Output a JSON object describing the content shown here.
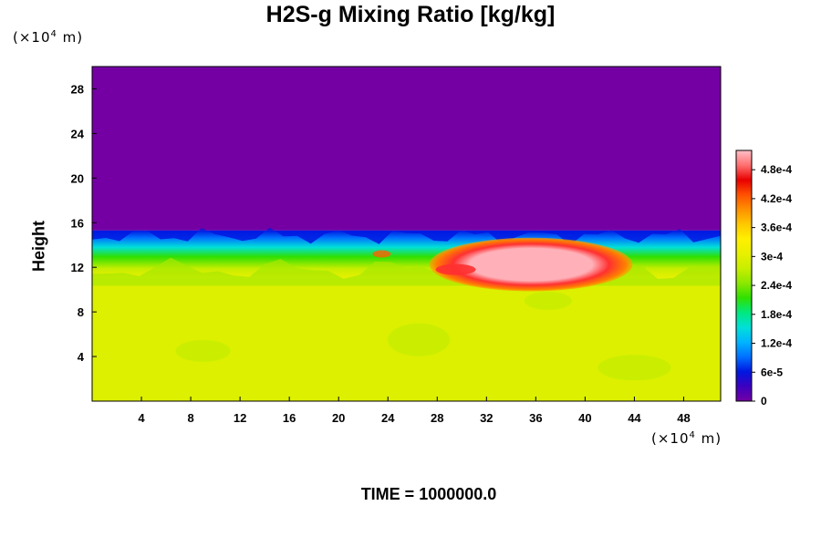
{
  "chart_data": {
    "type": "heatmap",
    "title": "H2S-g Mixing Ratio [kg/kg]",
    "ylabel": "Height",
    "xlabel": "",
    "x_unit_prefix": "(×10",
    "x_unit_exp": "4",
    "x_unit_suffix": " m)",
    "y_unit_prefix": "(×10",
    "y_unit_exp": "4",
    "y_unit_suffix": " m)",
    "time_label": "TIME = 1000000.0",
    "xlim": [
      0,
      51
    ],
    "ylim": [
      0,
      30
    ],
    "x_ticks": [
      4,
      8,
      12,
      16,
      20,
      24,
      28,
      32,
      36,
      40,
      44,
      48
    ],
    "y_ticks": [
      4,
      8,
      12,
      16,
      20,
      24,
      28
    ],
    "colorbar": {
      "range": [
        0,
        0.00052
      ],
      "tick_values": [
        0,
        6e-05,
        0.00012,
        0.00018,
        0.00024,
        0.0003,
        0.00036,
        0.00042,
        0.00048
      ],
      "tick_labels": [
        "0",
        "6e-5",
        "1.2e-4",
        "1.8e-4",
        "2.4e-4",
        "3e-4",
        "3.6e-4",
        "4.2e-4",
        "4.8e-4"
      ],
      "colors": [
        "#7400a4",
        "#3c00c0",
        "#0018e0",
        "#0070ff",
        "#00b4ff",
        "#00e0d8",
        "#00e880",
        "#30e000",
        "#8ce800",
        "#c8ee00",
        "#e8f000",
        "#fff000",
        "#ffc800",
        "#ff9000",
        "#ff5000",
        "#e80000",
        "#ff7070",
        "#ffc0c8"
      ]
    },
    "regions": [
      {
        "name": "upper-layer",
        "y_range": [
          15.3,
          30
        ],
        "value": 0
      },
      {
        "name": "mixing-layer",
        "y_range": [
          11,
          15.3
        ],
        "value_range": [
          3e-05,
          0.00038
        ]
      },
      {
        "name": "plume-core",
        "x_range": [
          27,
          42
        ],
        "y_range": [
          10.5,
          14
        ],
        "value_range": [
          0.00042,
          0.00052
        ]
      },
      {
        "name": "lower-layer",
        "y_range": [
          0,
          11
        ],
        "value": 0.00035
      }
    ]
  }
}
